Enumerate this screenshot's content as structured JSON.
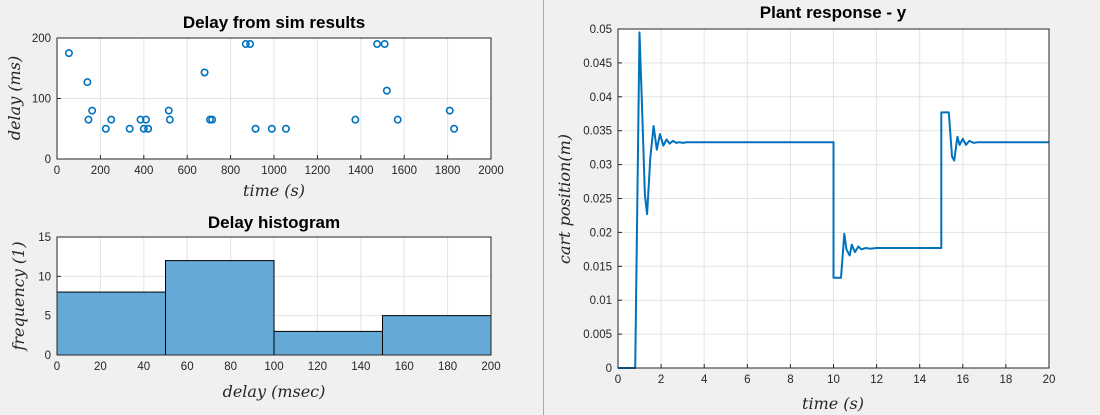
{
  "chart_data": [
    {
      "type": "scatter",
      "title": "Delay from sim results",
      "xlabel": "time (s)",
      "ylabel": "delay (ms)",
      "xlim": [
        0,
        2000
      ],
      "ylim": [
        0,
        200
      ],
      "xticks": [
        "0",
        "200",
        "400",
        "600",
        "800",
        "1000",
        "1200",
        "1400",
        "1600",
        "1800",
        "2000"
      ],
      "yticks": [
        "0",
        "100",
        "200"
      ],
      "grid": true,
      "marker_color": "#0072BD",
      "x": [
        55,
        140,
        145,
        162,
        225,
        250,
        335,
        385,
        400,
        410,
        420,
        515,
        520,
        680,
        705,
        715,
        870,
        890,
        915,
        990,
        1055,
        1375,
        1475,
        1510,
        1520,
        1570,
        1810,
        1830
      ],
      "y": [
        175,
        127,
        65,
        80,
        50,
        65,
        50,
        65,
        50,
        65,
        50,
        80,
        65,
        143,
        65,
        65,
        190,
        190,
        50,
        50,
        50,
        65,
        190,
        190,
        113,
        65,
        80,
        50
      ]
    },
    {
      "type": "bar",
      "title": "Delay histogram",
      "xlabel": "delay (msec)",
      "ylabel": "frequency (1)",
      "xlim": [
        0,
        200
      ],
      "ylim": [
        0,
        15
      ],
      "xticks": [
        "0",
        "20",
        "40",
        "60",
        "80",
        "100",
        "120",
        "140",
        "160",
        "180",
        "200"
      ],
      "yticks": [
        "0",
        "5",
        "10",
        "15"
      ],
      "grid": true,
      "bar_color": "#65A9D7",
      "bins": [
        [
          0,
          50
        ],
        [
          50,
          100
        ],
        [
          100,
          150
        ],
        [
          150,
          200
        ]
      ],
      "values": [
        8,
        12,
        3,
        5
      ]
    },
    {
      "type": "line",
      "title": "Plant response - y",
      "xlabel": "time (s)",
      "ylabel": "cart position(m)",
      "xlim": [
        0,
        20
      ],
      "ylim": [
        0,
        0.05
      ],
      "xticks": [
        "0",
        "2",
        "4",
        "6",
        "8",
        "10",
        "12",
        "14",
        "16",
        "18",
        "20"
      ],
      "yticks": [
        "0",
        "0.005",
        "0.01",
        "0.015",
        "0.02",
        "0.025",
        "0.03",
        "0.035",
        "0.04",
        "0.045",
        "0.05"
      ],
      "grid": true,
      "line_color": "#0072BD",
      "x": [
        0,
        0.8,
        1.0,
        1.1,
        1.25,
        1.35,
        1.5,
        1.65,
        1.8,
        1.95,
        2.1,
        2.25,
        2.4,
        2.55,
        2.7,
        2.85,
        3.0,
        3.2,
        10.0,
        10.0,
        10.35,
        10.5,
        10.6,
        10.75,
        10.85,
        11.0,
        11.15,
        11.3,
        11.5,
        11.7,
        12.0,
        15.0,
        15.0,
        15.35,
        15.5,
        15.6,
        15.75,
        15.85,
        16.0,
        16.15,
        16.3,
        16.5,
        16.7,
        17.0,
        20.0
      ],
      "y": [
        0,
        0,
        0.0495,
        0.04,
        0.0255,
        0.0227,
        0.031,
        0.0357,
        0.0322,
        0.0345,
        0.0328,
        0.0337,
        0.0331,
        0.0335,
        0.0332,
        0.0333,
        0.0332,
        0.0333,
        0.0333,
        0.0133,
        0.0133,
        0.0198,
        0.0175,
        0.0166,
        0.0182,
        0.0171,
        0.0179,
        0.0175,
        0.0177,
        0.0176,
        0.0177,
        0.0177,
        0.0377,
        0.0377,
        0.0312,
        0.0306,
        0.0341,
        0.0329,
        0.0338,
        0.0329,
        0.0335,
        0.0332,
        0.0333,
        0.0333,
        0.0333
      ]
    }
  ]
}
